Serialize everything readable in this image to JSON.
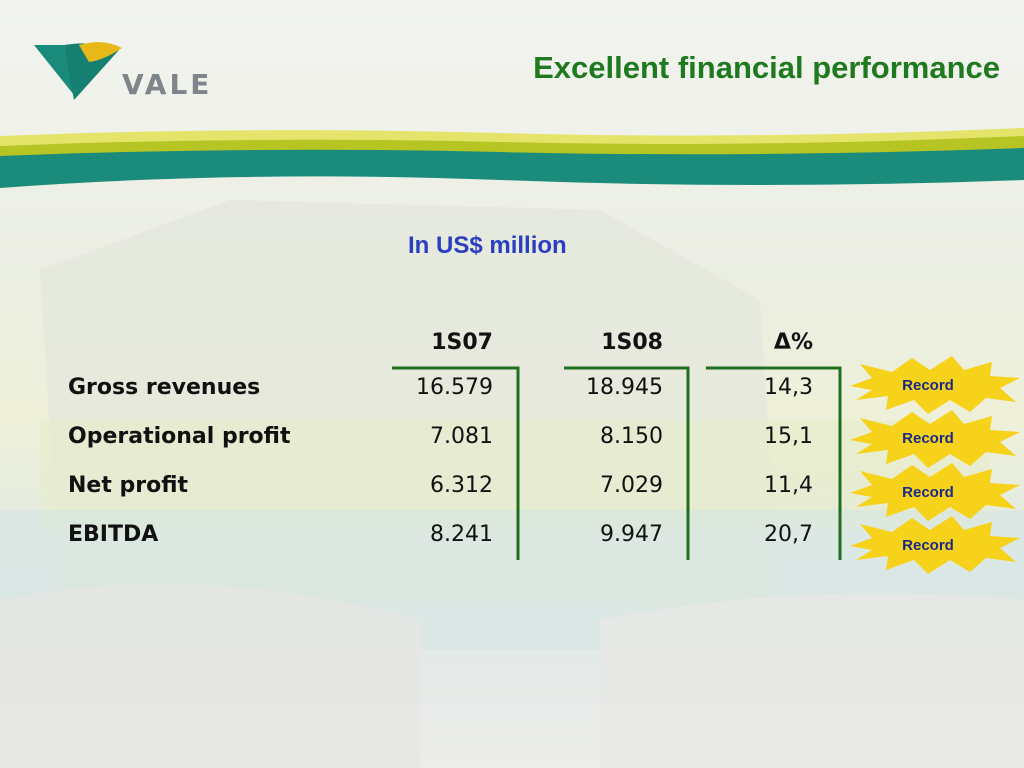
{
  "header": {
    "logo_text": "VALE",
    "title": "Excellent financial performance"
  },
  "table": {
    "unit_label": "In US$ million",
    "columns": [
      "1S07",
      "1S08",
      "Δ%"
    ],
    "rows": [
      {
        "label": "Gross revenues",
        "values": [
          "16.579",
          "18.945",
          "14,3"
        ],
        "badge": "Record"
      },
      {
        "label": "Operational profit",
        "values": [
          "7.081",
          "8.150",
          "15,1"
        ],
        "badge": "Record"
      },
      {
        "label": "Net profit",
        "values": [
          "6.312",
          "7.029",
          "11,4"
        ],
        "badge": "Record"
      },
      {
        "label": "EBITDA",
        "values": [
          "8.241",
          "9.947",
          "20,7"
        ],
        "badge": "Record"
      }
    ]
  },
  "colors": {
    "title_green": "#1f7a1f",
    "subtitle_blue": "#2a3fc0",
    "bracket_green": "#1f6f1f",
    "badge_yellow": "#f7d21a",
    "logo_teal": "#1a8a7a",
    "logo_yellow": "#e8b818"
  }
}
